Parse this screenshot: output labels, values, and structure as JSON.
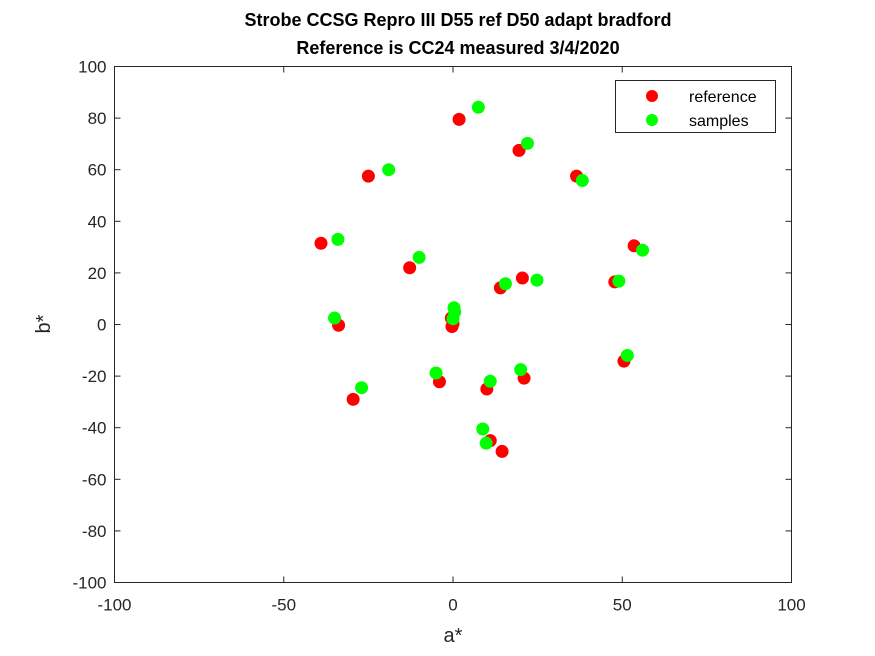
{
  "chart_data": {
    "type": "scatter",
    "title": "Strobe CCSG Repro III D55 ref D50 adapt bradford",
    "subtitle": "Reference is CC24 measured 3/4/2020",
    "xlabel": "a*",
    "ylabel": "b*",
    "xlim": [
      -100,
      100
    ],
    "ylim": [
      -100,
      100
    ],
    "xticks": [
      -100,
      -50,
      0,
      50,
      100
    ],
    "yticks": [
      -100,
      -80,
      -60,
      -40,
      -20,
      0,
      20,
      40,
      60,
      80,
      100
    ],
    "grid": false,
    "legend_position": "top-right",
    "series": [
      {
        "name": "reference",
        "color": "#ff0000",
        "points": [
          [
            -39.0,
            31.5
          ],
          [
            -25.0,
            57.5
          ],
          [
            1.8,
            79.5
          ],
          [
            19.5,
            67.5
          ],
          [
            36.5,
            57.5
          ],
          [
            53.5,
            30.5
          ],
          [
            47.8,
            16.5
          ],
          [
            -12.8,
            22.0
          ],
          [
            14.0,
            14.2
          ],
          [
            20.5,
            18.0
          ],
          [
            -33.8,
            -0.3
          ],
          [
            -0.5,
            2.5
          ],
          [
            -0.3,
            -0.8
          ],
          [
            0.0,
            0.3
          ],
          [
            50.5,
            -14.2
          ],
          [
            21.0,
            -20.8
          ],
          [
            10.0,
            -25.0
          ],
          [
            -4.0,
            -22.2
          ],
          [
            -29.5,
            -29.0
          ],
          [
            11.0,
            -45.0
          ],
          [
            14.5,
            -49.2
          ]
        ]
      },
      {
        "name": "samples",
        "color": "#00ff00",
        "points": [
          [
            -34.0,
            33.0
          ],
          [
            -19.0,
            60.0
          ],
          [
            7.5,
            84.2
          ],
          [
            22.0,
            70.2
          ],
          [
            38.2,
            55.8
          ],
          [
            56.0,
            28.8
          ],
          [
            49.0,
            16.8
          ],
          [
            -10.0,
            26.0
          ],
          [
            15.5,
            15.8
          ],
          [
            24.8,
            17.2
          ],
          [
            -35.0,
            2.5
          ],
          [
            0.3,
            6.5
          ],
          [
            0.5,
            4.8
          ],
          [
            0.0,
            2.2
          ],
          [
            51.5,
            -12.0
          ],
          [
            20.0,
            -17.5
          ],
          [
            11.0,
            -22.0
          ],
          [
            -5.0,
            -18.8
          ],
          [
            -27.0,
            -24.5
          ],
          [
            8.8,
            -40.5
          ],
          [
            9.8,
            -46.0
          ]
        ]
      }
    ]
  }
}
